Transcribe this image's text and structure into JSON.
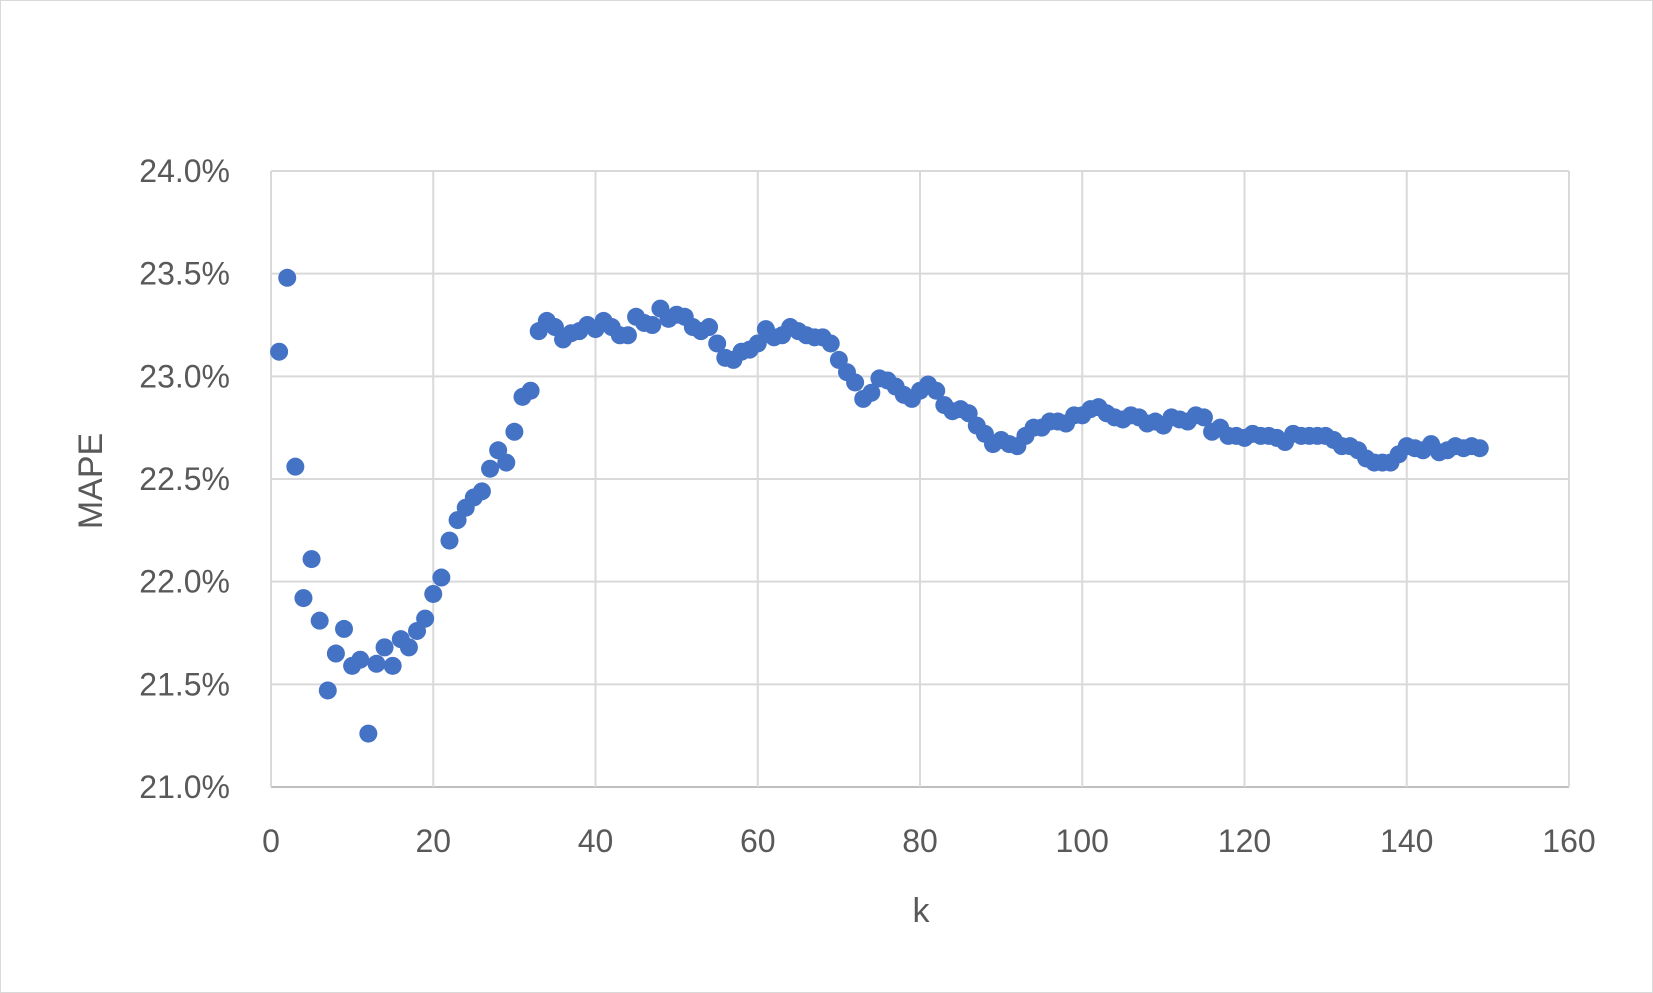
{
  "chart_data": {
    "type": "scatter",
    "title": "",
    "xlabel": "k",
    "ylabel": "MAPE",
    "xlim": [
      0,
      160
    ],
    "ylim": [
      0.21,
      0.24
    ],
    "x_ticks": [
      0,
      20,
      40,
      60,
      80,
      100,
      120,
      140,
      160
    ],
    "y_ticks": [
      0.21,
      0.215,
      0.22,
      0.225,
      0.23,
      0.235,
      0.24
    ],
    "x_tick_labels": [
      "0",
      "20",
      "40",
      "60",
      "80",
      "100",
      "120",
      "140",
      "160"
    ],
    "y_tick_labels": [
      "21.0%",
      "21.5%",
      "22.0%",
      "22.5%",
      "23.0%",
      "23.5%",
      "24.0%"
    ],
    "grid": true,
    "legend": "none",
    "marker_color": "#4472C4",
    "series": [
      {
        "x": [
          1,
          2,
          3,
          4,
          5,
          6,
          7,
          8,
          9,
          10,
          11,
          12,
          13,
          14,
          15,
          16,
          17,
          18,
          19,
          20,
          21,
          22,
          23,
          24,
          25,
          26,
          27,
          28,
          29,
          30,
          31,
          32,
          33,
          34,
          35,
          36,
          37,
          38,
          39,
          40,
          41,
          42,
          43,
          44,
          45,
          46,
          47,
          48,
          49,
          50,
          51,
          52,
          53,
          54,
          55,
          56,
          57,
          58,
          59,
          60,
          61,
          62,
          63,
          64,
          65,
          66,
          67,
          68,
          69,
          70,
          71,
          72,
          73,
          74,
          75,
          76,
          77,
          78,
          79,
          80,
          81,
          82,
          83,
          84,
          85,
          86,
          87,
          88,
          89,
          90,
          91,
          92,
          93,
          94,
          95,
          96,
          97,
          98,
          99,
          100,
          101,
          102,
          103,
          104,
          105,
          106,
          107,
          108,
          109,
          110,
          111,
          112,
          113,
          114,
          115,
          116,
          117,
          118,
          119,
          120,
          121,
          122,
          123,
          124,
          125,
          126,
          127,
          128,
          129,
          130,
          131,
          132,
          133,
          134,
          135,
          136,
          137,
          138,
          139,
          140,
          141,
          142,
          143,
          144,
          145,
          146,
          147,
          148,
          149
        ],
        "y": [
          0.2312,
          0.2348,
          0.2256,
          0.2192,
          0.2211,
          0.2181,
          0.2147,
          0.2165,
          0.2177,
          0.2159,
          0.2162,
          0.2126,
          0.216,
          0.2168,
          0.2159,
          0.2172,
          0.2168,
          0.2176,
          0.2182,
          0.2194,
          0.2202,
          0.222,
          0.223,
          0.2236,
          0.2241,
          0.2244,
          0.2255,
          0.2264,
          0.2258,
          0.2273,
          0.229,
          0.2293,
          0.2322,
          0.2327,
          0.2324,
          0.2318,
          0.2321,
          0.2322,
          0.2325,
          0.2323,
          0.2327,
          0.2324,
          0.232,
          0.232,
          0.2329,
          0.2326,
          0.2325,
          0.2333,
          0.2328,
          0.233,
          0.2329,
          0.2324,
          0.2322,
          0.2324,
          0.2316,
          0.2309,
          0.2308,
          0.2312,
          0.2313,
          0.2316,
          0.2323,
          0.2319,
          0.232,
          0.2324,
          0.2322,
          0.232,
          0.2319,
          0.2319,
          0.2316,
          0.2308,
          0.2302,
          0.2297,
          0.2289,
          0.2292,
          0.2299,
          0.2298,
          0.2295,
          0.2291,
          0.2289,
          0.2293,
          0.2296,
          0.2293,
          0.2286,
          0.2283,
          0.2284,
          0.2282,
          0.2276,
          0.2272,
          0.2267,
          0.2269,
          0.2267,
          0.2266,
          0.2271,
          0.2275,
          0.2275,
          0.2278,
          0.2278,
          0.2277,
          0.2281,
          0.2281,
          0.2284,
          0.2285,
          0.2282,
          0.228,
          0.2279,
          0.2281,
          0.228,
          0.2277,
          0.2278,
          0.2276,
          0.228,
          0.2279,
          0.2278,
          0.2281,
          0.228,
          0.2273,
          0.2275,
          0.2271,
          0.2271,
          0.227,
          0.2272,
          0.2271,
          0.2271,
          0.227,
          0.2268,
          0.2272,
          0.2271,
          0.2271,
          0.2271,
          0.2271,
          0.2269,
          0.2266,
          0.2266,
          0.2264,
          0.226,
          0.2258,
          0.2258,
          0.2258,
          0.2262,
          0.2266,
          0.2265,
          0.2264,
          0.2267,
          0.2263,
          0.2264,
          0.2266,
          0.2265,
          0.2266,
          0.2265
        ]
      }
    ]
  }
}
